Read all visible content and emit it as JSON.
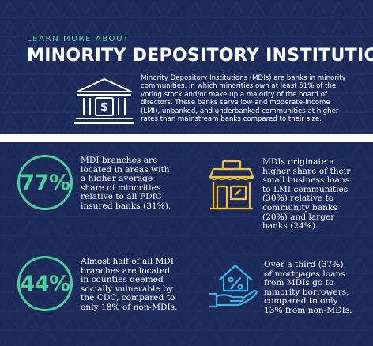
{
  "header": {
    "eyebrow": "LEARN MORE ABOUT",
    "title": "MINORITY DEPOSITORY INSTITUTIONS",
    "intro_icon": "bank-building-icon",
    "intro_lines": [
      "Minority Depository Institutions (MDIs) are banks in minority",
      "communities, in which minorities own at least 51% of the",
      "voting stock and/or make up a majority of the board of",
      "directors. These banks serve low-and moderate-income",
      "(LMI), unbanked, and underbanked communities at higher",
      "rates than mainstream banks compared to their size."
    ]
  },
  "stats": [
    {
      "value": "77%",
      "lines": [
        "MDI branches are",
        "located in areas with",
        "a higher average",
        "share of minorities",
        "relative to all FDIC-",
        "insured banks (31%)."
      ]
    },
    {
      "icon": "storefront-icon",
      "lines": [
        "MDIs originate a",
        "higher share of their",
        "small business loans",
        "to LMI communities",
        "(30%) relative to",
        "community banks",
        "(20%) and larger",
        "banks (24%)."
      ]
    },
    {
      "value": "44%",
      "lines": [
        "Almost half of all MDI",
        "branches are located",
        "in counties deemed",
        "socially vulnerable by",
        "the CDC, compared to",
        "only 18% of non-MDIs."
      ]
    },
    {
      "icon": "house-in-hand-percent-icon",
      "lines": [
        "Over a third (37%)",
        "of mortgages loans",
        "from MDIs go to",
        "minority borrowers,",
        "compared to only",
        "13% from non-MDIs."
      ]
    }
  ],
  "colors": {
    "navy": "#1d2b5a",
    "accent_green": "#4ccf9a",
    "icon_yellow": "#f2c230",
    "icon_blue": "#38b6e8"
  }
}
